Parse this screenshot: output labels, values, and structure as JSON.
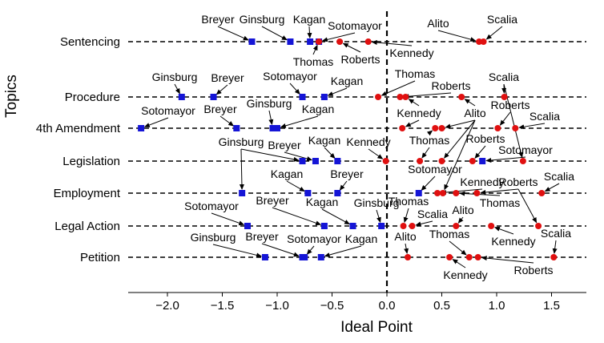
{
  "chart_data": {
    "type": "scatter",
    "title": "",
    "xlabel": "Ideal Point",
    "ylabel": "Topics",
    "xlim": [
      -2.3,
      1.8
    ],
    "xticks": [
      {
        "value": -2.0,
        "label": "−2.0"
      },
      {
        "value": -1.5,
        "label": "−1.5"
      },
      {
        "value": -1.0,
        "label": "−1.0"
      },
      {
        "value": -0.5,
        "label": "−0.5"
      },
      {
        "value": 0.0,
        "label": "0.0"
      },
      {
        "value": 0.5,
        "label": "0.5"
      },
      {
        "value": 1.0,
        "label": "1.0"
      },
      {
        "value": 1.5,
        "label": "1.5"
      }
    ],
    "reference_line": 0.0,
    "colors": {
      "liberal": "#1515d6",
      "conservative": "#e01010"
    },
    "topics": [
      {
        "name": "Sentencing",
        "points": [
          {
            "justice": "Breyer",
            "x": -1.23,
            "group": "liberal"
          },
          {
            "justice": "Ginsburg",
            "x": -0.88,
            "group": "liberal"
          },
          {
            "justice": "Kagan",
            "x": -0.7,
            "group": "liberal"
          },
          {
            "justice": "Sotomayor",
            "x": -0.62,
            "group": "liberal"
          },
          {
            "justice": "Thomas",
            "x": -0.62,
            "group": "conservative"
          },
          {
            "justice": "Roberts",
            "x": -0.43,
            "group": "conservative"
          },
          {
            "justice": "Kennedy",
            "x": -0.17,
            "group": "conservative"
          },
          {
            "justice": "Alito",
            "x": 0.84,
            "group": "conservative"
          },
          {
            "justice": "Scalia",
            "x": 0.88,
            "group": "conservative"
          }
        ]
      },
      {
        "name": "Procedure",
        "points": [
          {
            "justice": "Ginsburg",
            "x": -1.87,
            "group": "liberal"
          },
          {
            "justice": "Breyer",
            "x": -1.58,
            "group": "liberal"
          },
          {
            "justice": "Sotomayor",
            "x": -0.77,
            "group": "liberal"
          },
          {
            "justice": "Kagan",
            "x": -0.57,
            "group": "liberal"
          },
          {
            "justice": "Thomas",
            "x": -0.08,
            "group": "conservative"
          },
          {
            "justice": "Roberts",
            "x": 0.12,
            "group": "conservative"
          },
          {
            "justice": "Kennedy",
            "x": 0.17,
            "group": "conservative"
          },
          {
            "justice": "Alito",
            "x": 0.68,
            "group": "conservative"
          },
          {
            "justice": "Scalia",
            "x": 1.07,
            "group": "conservative"
          }
        ]
      },
      {
        "name": "4th Amendment",
        "points": [
          {
            "justice": "Sotomayor",
            "x": -2.24,
            "group": "liberal"
          },
          {
            "justice": "Breyer",
            "x": -1.37,
            "group": "liberal"
          },
          {
            "justice": "Ginsburg",
            "x": -1.04,
            "group": "liberal"
          },
          {
            "justice": "Kagan",
            "x": -1.0,
            "group": "liberal"
          },
          {
            "justice": "Kennedy",
            "x": 0.14,
            "group": "conservative"
          },
          {
            "justice": "Thomas",
            "x": 0.44,
            "group": "conservative"
          },
          {
            "justice": "Alito",
            "x": 0.5,
            "group": "conservative"
          },
          {
            "justice": "Roberts",
            "x": 1.01,
            "group": "conservative"
          },
          {
            "justice": "Scalia",
            "x": 1.17,
            "group": "conservative"
          }
        ]
      },
      {
        "name": "Legislation",
        "points": [
          {
            "justice": "Ginsburg",
            "x": -0.77,
            "group": "liberal"
          },
          {
            "justice": "Breyer",
            "x": -0.65,
            "group": "liberal"
          },
          {
            "justice": "Kagan",
            "x": -0.45,
            "group": "liberal"
          },
          {
            "justice": "Kennedy",
            "x": -0.01,
            "group": "conservative"
          },
          {
            "justice": "Thomas",
            "x": 0.3,
            "group": "conservative"
          },
          {
            "justice": "Alito",
            "x": 0.5,
            "group": "conservative"
          },
          {
            "justice": "Roberts",
            "x": 0.78,
            "group": "conservative"
          },
          {
            "justice": "Sotomayor",
            "x": 0.87,
            "group": "liberal"
          },
          {
            "justice": "Scalia",
            "x": 1.24,
            "group": "conservative"
          }
        ]
      },
      {
        "name": "Employment",
        "points": [
          {
            "justice": "Ginsburg",
            "x": -1.32,
            "group": "liberal"
          },
          {
            "justice": "Kagan",
            "x": -0.72,
            "group": "liberal"
          },
          {
            "justice": "Breyer",
            "x": -0.45,
            "group": "liberal"
          },
          {
            "justice": "Sotomayor",
            "x": 0.29,
            "group": "liberal"
          },
          {
            "justice": "Kennedy",
            "x": 0.46,
            "group": "conservative"
          },
          {
            "justice": "Alito",
            "x": 0.51,
            "group": "conservative"
          },
          {
            "justice": "Thomas",
            "x": 0.63,
            "group": "conservative"
          },
          {
            "justice": "Roberts",
            "x": 0.82,
            "group": "conservative"
          },
          {
            "justice": "Scalia",
            "x": 1.41,
            "group": "conservative"
          }
        ]
      },
      {
        "name": "Legal Action",
        "points": [
          {
            "justice": "Sotomayor",
            "x": -1.27,
            "group": "liberal"
          },
          {
            "justice": "Breyer",
            "x": -0.57,
            "group": "liberal"
          },
          {
            "justice": "Kagan",
            "x": -0.31,
            "group": "liberal"
          },
          {
            "justice": "Ginsburg",
            "x": -0.05,
            "group": "liberal"
          },
          {
            "justice": "Thomas",
            "x": 0.15,
            "group": "conservative"
          },
          {
            "justice": "Scalia",
            "x": 0.23,
            "group": "conservative"
          },
          {
            "justice": "Alito",
            "x": 0.63,
            "group": "conservative"
          },
          {
            "justice": "Kennedy",
            "x": 0.95,
            "group": "conservative"
          },
          {
            "justice": "Roberts",
            "x": 1.38,
            "group": "conservative"
          }
        ]
      },
      {
        "name": "Petition",
        "points": [
          {
            "justice": "Ginsburg",
            "x": -1.11,
            "group": "liberal"
          },
          {
            "justice": "Breyer",
            "x": -0.77,
            "group": "liberal"
          },
          {
            "justice": "Sotomayor",
            "x": -0.75,
            "group": "liberal"
          },
          {
            "justice": "Kagan",
            "x": -0.6,
            "group": "liberal"
          },
          {
            "justice": "Alito",
            "x": 0.19,
            "group": "conservative"
          },
          {
            "justice": "Kennedy",
            "x": 0.57,
            "group": "conservative"
          },
          {
            "justice": "Thomas",
            "x": 0.75,
            "group": "conservative"
          },
          {
            "justice": "Roberts",
            "x": 0.83,
            "group": "conservative"
          },
          {
            "justice": "Scalia",
            "x": 1.52,
            "group": "conservative"
          }
        ]
      }
    ]
  }
}
